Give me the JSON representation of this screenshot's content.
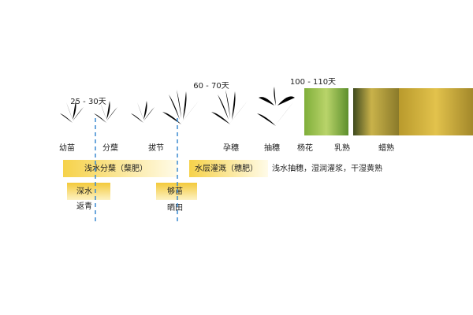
{
  "days": [
    "25 - 30天",
    "60 - 70天",
    "100 - 110天"
  ],
  "stages": [
    "幼苗",
    "分蘖",
    "拔节",
    "孕穗",
    "抽穗",
    "杨花",
    "乳熟",
    "蜡熟"
  ],
  "water": {
    "tillering": "浅水分蘖（蘖肥）",
    "flooding": "水层灌溉（穗肥）",
    "late": "浅水抽穗，湿润灌浆，干湿黄熟",
    "deep": [
      "深水",
      "返青"
    ],
    "drain": [
      "够苗",
      "晒田"
    ]
  }
}
